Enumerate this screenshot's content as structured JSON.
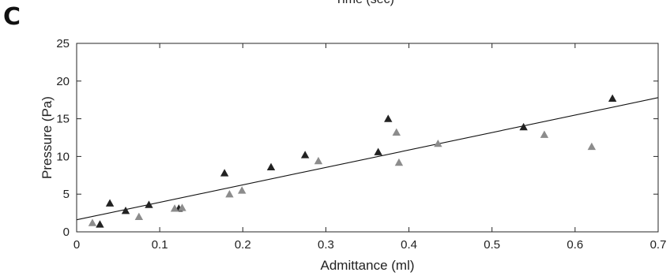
{
  "panel_label": "C",
  "clipped_top_text": "Time (sec)",
  "chart_data": {
    "type": "scatter",
    "title": "",
    "xlabel": "Admittance (ml)",
    "ylabel": "Pressure (Pa)",
    "xlim": [
      0,
      0.7
    ],
    "ylim": [
      0,
      25
    ],
    "x_ticks": [
      0,
      0.1,
      0.2,
      0.3,
      0.4,
      0.5,
      0.6,
      0.7
    ],
    "x_tick_labels": [
      "0",
      "0.1",
      "0.2",
      "0.3",
      "0.4",
      "0.5",
      "0.6",
      "0.7"
    ],
    "y_ticks": [
      0,
      5,
      10,
      15,
      20,
      25
    ],
    "y_tick_labels": [
      "0",
      "5",
      "10",
      "15",
      "20",
      "25"
    ],
    "grid": false,
    "box": true,
    "marker": "triangle",
    "series": [
      {
        "color": "#222222",
        "points": [
          [
            0.028,
            1.0
          ],
          [
            0.04,
            3.8
          ],
          [
            0.059,
            2.8
          ],
          [
            0.087,
            3.6
          ],
          [
            0.123,
            3.1
          ],
          [
            0.178,
            7.8
          ],
          [
            0.234,
            8.6
          ],
          [
            0.275,
            10.2
          ],
          [
            0.363,
            10.6
          ],
          [
            0.375,
            15.0
          ],
          [
            0.538,
            13.9
          ],
          [
            0.645,
            17.7
          ]
        ]
      },
      {
        "color": "#8c8c8c",
        "points": [
          [
            0.019,
            1.2
          ],
          [
            0.075,
            2.0
          ],
          [
            0.118,
            3.1
          ],
          [
            0.127,
            3.2
          ],
          [
            0.184,
            5.0
          ],
          [
            0.199,
            5.5
          ],
          [
            0.291,
            9.4
          ],
          [
            0.385,
            13.2
          ],
          [
            0.388,
            9.2
          ],
          [
            0.435,
            11.7
          ],
          [
            0.563,
            12.9
          ],
          [
            0.62,
            11.3
          ]
        ]
      }
    ],
    "fit_line": {
      "color": "#111111",
      "x": [
        0,
        0.7
      ],
      "y": [
        1.6,
        17.8
      ]
    }
  }
}
